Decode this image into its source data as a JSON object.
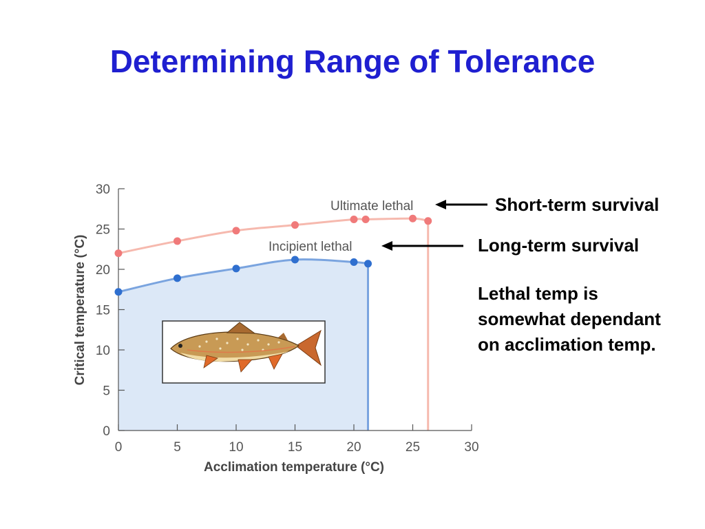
{
  "slide": {
    "title": "Determining Range of Tolerance",
    "annotations": {
      "short_term": "Short-term survival",
      "long_term": "Long-term survival",
      "lethal_note": "Lethal temp is somewhat dependant on acclimation temp."
    }
  },
  "chart_data": {
    "type": "line",
    "title": "",
    "xlabel": "Acclimation temperature (°C)",
    "ylabel": "Critical temperature (°C)",
    "xlim": [
      0,
      30
    ],
    "ylim": [
      0,
      30
    ],
    "x_ticks": [
      0,
      5,
      10,
      15,
      20,
      25,
      30
    ],
    "y_ticks": [
      0,
      5,
      10,
      15,
      20,
      25,
      30
    ],
    "grid": false,
    "legend": "none",
    "series": [
      {
        "name": "Ultimate lethal",
        "color": "#f07a7a",
        "line_color": "#f6b9ae",
        "x": [
          0,
          5,
          10,
          15,
          20,
          21,
          25,
          26.3
        ],
        "y": [
          22,
          23.5,
          24.8,
          25.5,
          26.2,
          26.2,
          26.3,
          26.0
        ],
        "drop_x": 26.3
      },
      {
        "name": "Incipient lethal",
        "color": "#2f6fcf",
        "line_color": "#7aa4df",
        "x": [
          0,
          5,
          10,
          15,
          20,
          21.2
        ],
        "y": [
          17.2,
          18.9,
          20.1,
          21.2,
          20.9,
          20.7
        ],
        "drop_x": 21.2
      }
    ],
    "shaded_region": {
      "under_series": "Incipient lethal",
      "color": "#dce8f7"
    },
    "inset_image": "fish-illustration"
  }
}
